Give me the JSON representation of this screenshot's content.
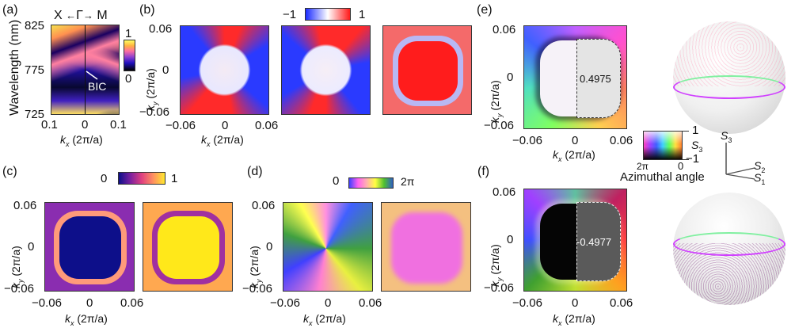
{
  "panels": {
    "a": {
      "label": "(a)",
      "top_axis": {
        "left": "X",
        "center": "Γ",
        "right": "M"
      },
      "ylabel": "Wavelength (nm)",
      "yticks": [
        "825",
        "775",
        "725"
      ],
      "xticks": [
        "0.1",
        "0",
        "0.1"
      ],
      "xlabel_var": "k",
      "xlabel_sub": "x",
      "xlabel_unit": " (2π/a)",
      "annotation": "BIC",
      "colorbar": {
        "max": "1",
        "min": "0"
      }
    },
    "b": {
      "label": "(b)",
      "colorbar": {
        "min": "−1",
        "max": "1"
      },
      "yticks": [
        "0.06",
        "0",
        "−0.06"
      ],
      "xticks": [
        "−0.06",
        "0",
        "0.06"
      ],
      "ylabel_var": "k",
      "ylabel_sub": "y",
      "ylabel_unit": " (2π/a)",
      "xlabel_var": "k",
      "xlabel_sub": "x",
      "xlabel_unit": " (2π/a)"
    },
    "c": {
      "label": "(c)",
      "colorbar": {
        "min": "0",
        "max": "1"
      },
      "yticks": [
        "0.06",
        "0",
        "−0.06"
      ],
      "xticks": [
        "−0.06",
        "0",
        "0.06"
      ],
      "ylabel_var": "k",
      "ylabel_sub": "y",
      "ylabel_unit": " (2π/a)",
      "xlabel_var": "k",
      "xlabel_sub": "x",
      "xlabel_unit": " (2π/a)"
    },
    "d": {
      "label": "(d)",
      "colorbar": {
        "min": "0",
        "max": "2π"
      },
      "yticks": [
        "0.06",
        "0",
        "−0.06"
      ],
      "xticks": [
        "−0.06",
        "0",
        "0.06"
      ],
      "ylabel_var": "k",
      "ylabel_sub": "y",
      "ylabel_unit": " (2π/a)",
      "xlabel_var": "k",
      "xlabel_sub": "x",
      "xlabel_unit": " (2π/a)"
    },
    "e": {
      "label": "(e)",
      "value": "0.4975",
      "yticks": [
        "0.06",
        "0",
        "−0.06"
      ],
      "xticks": [
        "−0.06",
        "0",
        "0.06"
      ],
      "ylabel_var": "k",
      "ylabel_sub": "y",
      "ylabel_unit": " (2π/a)",
      "xlabel_var": "k",
      "xlabel_sub": "x",
      "xlabel_unit": " (2π/a)"
    },
    "f": {
      "label": "(f)",
      "value": "-0.4977",
      "yticks": [
        "0.06",
        "0",
        "−0.06"
      ],
      "xticks": [
        "−0.06",
        "0",
        "0.06"
      ],
      "ylabel_var": "k",
      "ylabel_sub": "y",
      "ylabel_unit": " (2π/a)",
      "xlabel_var": "k",
      "xlabel_sub": "x",
      "xlabel_unit": " (2π/a)"
    }
  },
  "color_legend": {
    "s3_max": "1",
    "s3_min": "−1",
    "s3_var": "S",
    "s3_sub": "3",
    "angle_left": "2π",
    "angle_right": "0",
    "title": "Azimuthal angle"
  },
  "stokes_axes": {
    "s3_var": "S",
    "s3_sub": "3",
    "s2_var": "S",
    "s2_sub": "2",
    "s1_var": "S",
    "s1_sub": "1"
  },
  "colors": {
    "red": "#ff1a1a",
    "blue": "#1a2bff",
    "navy": "#0d0f8a",
    "yellow": "#ffe81a",
    "pink": "#f070e0"
  }
}
